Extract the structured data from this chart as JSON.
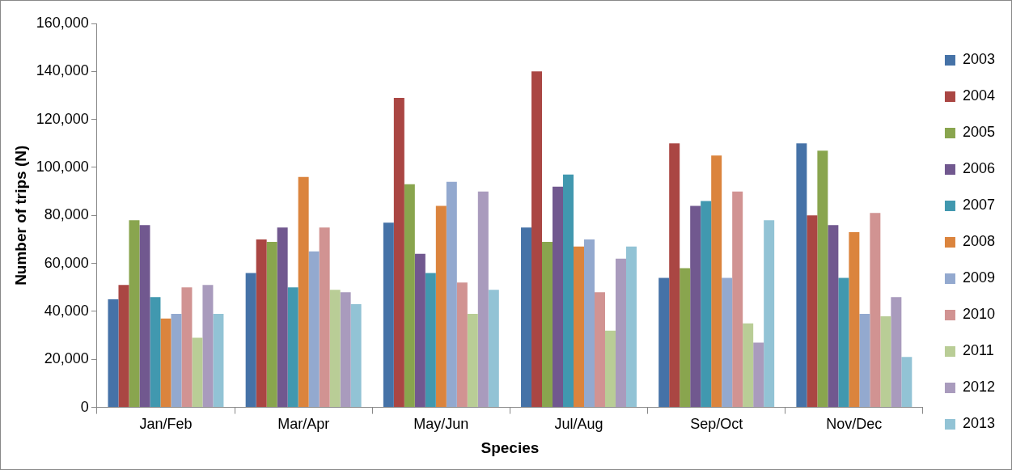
{
  "chart_data": {
    "type": "bar",
    "xlabel": "Species",
    "ylabel": "Number of trips (N)",
    "categories": [
      "Jan/Feb",
      "Mar/Apr",
      "May/Jun",
      "Jul/Aug",
      "Sep/Oct",
      "Nov/Dec"
    ],
    "ylim": [
      0,
      160000
    ],
    "yticks": [
      0,
      {
        "value": 20000,
        "label": "20,000"
      },
      {
        "value": 40000,
        "label": "40,000"
      },
      {
        "value": 60000,
        "label": "60,000"
      },
      {
        "value": 80000,
        "label": "80,000"
      },
      {
        "value": 100000,
        "label": "100,000"
      },
      {
        "value": 120000,
        "label": "120,000"
      },
      {
        "value": 140000,
        "label": "140,000"
      },
      {
        "value": 160000,
        "label": "160,000"
      }
    ],
    "grid": false,
    "legend": "right",
    "series": [
      {
        "name": "2003",
        "color": "#4572a7",
        "values": [
          45000,
          56000,
          77000,
          75000,
          54000,
          110000
        ]
      },
      {
        "name": "2004",
        "color": "#aa4643",
        "values": [
          51000,
          70000,
          129000,
          140000,
          110000,
          80000
        ]
      },
      {
        "name": "2005",
        "color": "#89a54e",
        "values": [
          78000,
          69000,
          93000,
          69000,
          58000,
          107000
        ]
      },
      {
        "name": "2006",
        "color": "#71588f",
        "values": [
          76000,
          75000,
          64000,
          92000,
          84000,
          76000
        ]
      },
      {
        "name": "2007",
        "color": "#4198af",
        "values": [
          46000,
          50000,
          56000,
          97000,
          86000,
          54000
        ]
      },
      {
        "name": "2008",
        "color": "#db843d",
        "values": [
          37000,
          96000,
          84000,
          67000,
          105000,
          73000
        ]
      },
      {
        "name": "2009",
        "color": "#93a9cf",
        "values": [
          39000,
          65000,
          94000,
          70000,
          54000,
          39000
        ]
      },
      {
        "name": "2010",
        "color": "#d19392",
        "values": [
          50000,
          75000,
          52000,
          48000,
          90000,
          81000
        ]
      },
      {
        "name": "2011",
        "color": "#b9cd96",
        "values": [
          29000,
          49000,
          39000,
          32000,
          35000,
          38000
        ]
      },
      {
        "name": "2012",
        "color": "#a99bbd",
        "values": [
          51000,
          48000,
          90000,
          62000,
          27000,
          46000
        ]
      },
      {
        "name": "2013",
        "color": "#92c3d5",
        "values": [
          39000,
          43000,
          49000,
          67000,
          78000,
          21000
        ]
      }
    ]
  }
}
